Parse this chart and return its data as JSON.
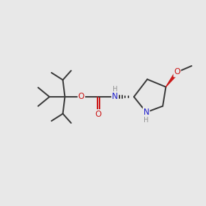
{
  "bg_color": "#e8e8e8",
  "atom_colors": {
    "C": "#3a3a3a",
    "N": "#1a1acc",
    "O": "#cc1a1a",
    "H_label": "#909090"
  },
  "bond_color": "#3a3a3a",
  "bond_width": 1.5,
  "font_size_atom": 8.5,
  "font_size_small": 7.0
}
